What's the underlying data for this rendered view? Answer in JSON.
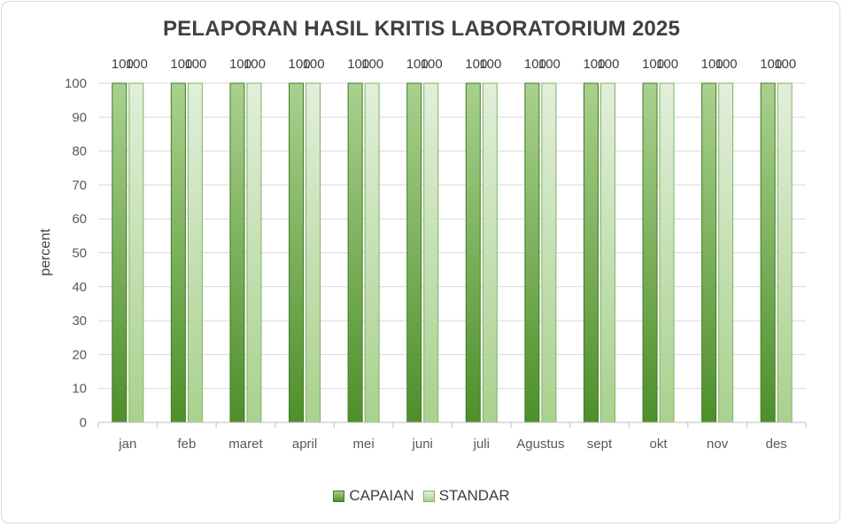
{
  "chart_data": {
    "type": "bar",
    "title": "PELAPORAN HASIL KRITIS LABORATORIUM 2025",
    "xlabel": "",
    "ylabel": "percent",
    "ylim": [
      0,
      100
    ],
    "yticks": [
      0,
      10,
      20,
      30,
      40,
      50,
      60,
      70,
      80,
      90,
      100
    ],
    "categories": [
      "jan",
      "feb",
      "maret",
      "april",
      "mei",
      "juni",
      "juli",
      "Agustus",
      "sept",
      "okt",
      "nov",
      "des"
    ],
    "series": [
      {
        "name": "CAPAIAN",
        "values": [
          100,
          100,
          100,
          100,
          100,
          100,
          100,
          100,
          100,
          100,
          100,
          100
        ],
        "color": "#5a9a34"
      },
      {
        "name": "STANDAR",
        "values": [
          100,
          100,
          100,
          100,
          100,
          100,
          100,
          100,
          100,
          100,
          100,
          100
        ],
        "color": "#b4d8a0"
      }
    ],
    "grid": true,
    "legend_position": "bottom",
    "data_labels": true
  }
}
